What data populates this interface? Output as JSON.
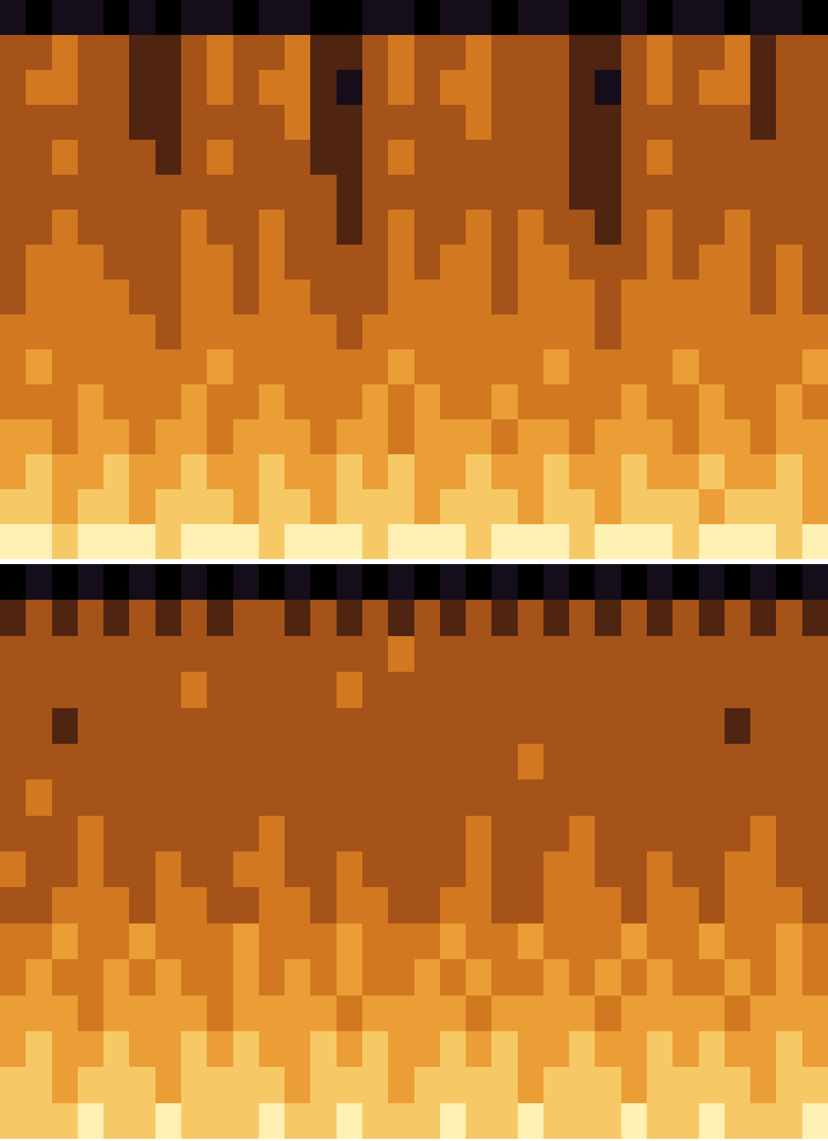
{
  "chart_data": [
    {
      "type": "heatmap",
      "tick_labels": false,
      "cells": [
        [
          3,
          2,
          3,
          3,
          2,
          3,
          2,
          3,
          3,
          2,
          3,
          3,
          2,
          2,
          3,
          3,
          2,
          3,
          3,
          2,
          3,
          3,
          2,
          2,
          3,
          2,
          3,
          3,
          2,
          3,
          3,
          2
        ],
        [
          5,
          5,
          6,
          5,
          5,
          4,
          4,
          5,
          6,
          5,
          5,
          6,
          4,
          4,
          5,
          6,
          5,
          5,
          6,
          5,
          5,
          5,
          4,
          4,
          5,
          6,
          5,
          5,
          6,
          4,
          5,
          5
        ],
        [
          5,
          6,
          6,
          5,
          5,
          4,
          4,
          5,
          6,
          5,
          6,
          6,
          4,
          3,
          5,
          6,
          5,
          6,
          6,
          5,
          5,
          5,
          4,
          3,
          5,
          6,
          5,
          6,
          6,
          4,
          5,
          5
        ],
        [
          5,
          5,
          5,
          5,
          5,
          4,
          4,
          5,
          5,
          5,
          5,
          6,
          4,
          4,
          5,
          5,
          5,
          5,
          6,
          5,
          5,
          5,
          4,
          4,
          5,
          5,
          5,
          5,
          5,
          4,
          5,
          5
        ],
        [
          5,
          5,
          6,
          5,
          5,
          5,
          4,
          5,
          6,
          5,
          5,
          5,
          4,
          4,
          5,
          6,
          5,
          5,
          5,
          5,
          5,
          5,
          4,
          4,
          5,
          6,
          5,
          5,
          5,
          5,
          5,
          5
        ],
        [
          5,
          5,
          5,
          5,
          5,
          5,
          5,
          5,
          5,
          5,
          5,
          5,
          5,
          4,
          5,
          5,
          5,
          5,
          5,
          5,
          5,
          5,
          4,
          4,
          5,
          5,
          5,
          5,
          5,
          5,
          5,
          5
        ],
        [
          5,
          5,
          6,
          5,
          5,
          5,
          5,
          6,
          5,
          5,
          6,
          5,
          5,
          4,
          5,
          6,
          5,
          5,
          6,
          5,
          6,
          5,
          5,
          4,
          5,
          6,
          5,
          5,
          6,
          5,
          5,
          5
        ],
        [
          5,
          6,
          6,
          6,
          5,
          5,
          5,
          6,
          6,
          5,
          6,
          5,
          5,
          5,
          5,
          6,
          5,
          6,
          6,
          5,
          6,
          6,
          5,
          5,
          5,
          6,
          5,
          6,
          6,
          5,
          6,
          5
        ],
        [
          5,
          6,
          6,
          6,
          6,
          5,
          5,
          6,
          6,
          5,
          6,
          6,
          5,
          5,
          5,
          6,
          6,
          6,
          6,
          5,
          6,
          6,
          6,
          5,
          6,
          6,
          6,
          6,
          6,
          5,
          6,
          5
        ],
        [
          6,
          6,
          6,
          6,
          6,
          6,
          5,
          6,
          6,
          6,
          6,
          6,
          6,
          5,
          6,
          6,
          6,
          6,
          6,
          6,
          6,
          6,
          6,
          5,
          6,
          6,
          6,
          6,
          6,
          6,
          6,
          6
        ],
        [
          6,
          7,
          6,
          6,
          6,
          6,
          6,
          6,
          7,
          6,
          6,
          6,
          6,
          6,
          6,
          7,
          6,
          6,
          6,
          6,
          6,
          7,
          6,
          6,
          6,
          6,
          7,
          6,
          6,
          6,
          6,
          7
        ],
        [
          6,
          6,
          6,
          7,
          6,
          6,
          6,
          7,
          6,
          6,
          7,
          6,
          6,
          6,
          7,
          6,
          7,
          6,
          6,
          7,
          6,
          6,
          6,
          6,
          7,
          6,
          6,
          7,
          6,
          6,
          7,
          6
        ],
        [
          7,
          7,
          6,
          7,
          7,
          6,
          7,
          7,
          6,
          7,
          7,
          7,
          6,
          7,
          7,
          6,
          7,
          7,
          7,
          6,
          7,
          7,
          6,
          7,
          7,
          7,
          6,
          7,
          7,
          6,
          7,
          7
        ],
        [
          7,
          8,
          7,
          7,
          8,
          7,
          7,
          8,
          7,
          7,
          8,
          7,
          7,
          8,
          7,
          8,
          7,
          7,
          8,
          7,
          7,
          8,
          7,
          7,
          8,
          7,
          7,
          8,
          7,
          7,
          8,
          7
        ],
        [
          8,
          8,
          7,
          8,
          8,
          7,
          8,
          8,
          8,
          7,
          8,
          8,
          7,
          8,
          8,
          8,
          7,
          8,
          8,
          8,
          7,
          8,
          8,
          7,
          8,
          8,
          8,
          7,
          8,
          8,
          8,
          7
        ],
        [
          9,
          9,
          8,
          9,
          9,
          9,
          8,
          9,
          9,
          9,
          8,
          9,
          9,
          9,
          8,
          9,
          9,
          9,
          8,
          9,
          9,
          9,
          8,
          9,
          9,
          9,
          8,
          9,
          9,
          9,
          8,
          9
        ]
      ]
    },
    {
      "type": "heatmap",
      "tick_labels": false,
      "cells": [
        [
          2,
          3,
          2,
          3,
          2,
          3,
          2,
          3,
          2,
          3,
          2,
          3,
          2,
          3,
          2,
          3,
          2,
          3,
          2,
          3,
          2,
          3,
          2,
          3,
          2,
          3,
          2,
          3,
          2,
          3,
          2,
          3
        ],
        [
          4,
          5,
          4,
          5,
          4,
          5,
          4,
          5,
          4,
          5,
          5,
          4,
          5,
          4,
          5,
          4,
          5,
          4,
          5,
          4,
          5,
          4,
          5,
          4,
          5,
          4,
          5,
          4,
          5,
          4,
          5,
          4
        ],
        [
          5,
          5,
          5,
          5,
          5,
          5,
          5,
          5,
          5,
          5,
          5,
          5,
          5,
          5,
          5,
          6,
          5,
          5,
          5,
          5,
          5,
          5,
          5,
          5,
          5,
          5,
          5,
          5,
          5,
          5,
          5,
          5
        ],
        [
          5,
          5,
          5,
          5,
          5,
          5,
          5,
          6,
          5,
          5,
          5,
          5,
          5,
          6,
          5,
          5,
          5,
          5,
          5,
          5,
          5,
          5,
          5,
          5,
          5,
          5,
          5,
          5,
          5,
          5,
          5,
          5
        ],
        [
          5,
          5,
          4,
          5,
          5,
          5,
          5,
          5,
          5,
          5,
          5,
          5,
          5,
          5,
          5,
          5,
          5,
          5,
          5,
          5,
          5,
          5,
          5,
          5,
          5,
          5,
          5,
          5,
          4,
          5,
          5,
          5
        ],
        [
          5,
          5,
          5,
          5,
          5,
          5,
          5,
          5,
          5,
          5,
          5,
          5,
          5,
          5,
          5,
          5,
          5,
          5,
          5,
          5,
          6,
          5,
          5,
          5,
          5,
          5,
          5,
          5,
          5,
          5,
          5,
          5
        ],
        [
          5,
          6,
          5,
          5,
          5,
          5,
          5,
          5,
          5,
          5,
          5,
          5,
          5,
          5,
          5,
          5,
          5,
          5,
          5,
          5,
          5,
          5,
          5,
          5,
          5,
          5,
          5,
          5,
          5,
          5,
          5,
          5
        ],
        [
          5,
          5,
          5,
          6,
          5,
          5,
          5,
          5,
          5,
          5,
          6,
          5,
          5,
          5,
          5,
          5,
          5,
          5,
          6,
          5,
          5,
          5,
          6,
          5,
          5,
          5,
          5,
          5,
          5,
          6,
          5,
          5
        ],
        [
          6,
          5,
          5,
          6,
          5,
          5,
          6,
          5,
          5,
          6,
          6,
          5,
          5,
          6,
          5,
          5,
          5,
          5,
          6,
          5,
          5,
          6,
          6,
          5,
          5,
          6,
          5,
          5,
          6,
          6,
          5,
          5
        ],
        [
          5,
          5,
          6,
          6,
          6,
          5,
          6,
          6,
          5,
          5,
          6,
          6,
          5,
          6,
          6,
          5,
          5,
          6,
          6,
          5,
          5,
          6,
          6,
          6,
          5,
          6,
          6,
          5,
          6,
          6,
          6,
          5
        ],
        [
          6,
          6,
          7,
          6,
          6,
          7,
          6,
          6,
          6,
          7,
          6,
          6,
          6,
          7,
          6,
          6,
          6,
          7,
          6,
          6,
          7,
          6,
          6,
          6,
          7,
          6,
          6,
          7,
          6,
          6,
          7,
          6
        ],
        [
          6,
          7,
          6,
          6,
          7,
          6,
          7,
          6,
          6,
          7,
          6,
          7,
          6,
          7,
          6,
          6,
          7,
          6,
          7,
          6,
          6,
          7,
          6,
          7,
          6,
          7,
          6,
          6,
          7,
          6,
          7,
          6
        ],
        [
          7,
          7,
          7,
          6,
          7,
          7,
          7,
          7,
          6,
          7,
          7,
          7,
          7,
          6,
          7,
          7,
          7,
          7,
          6,
          7,
          7,
          7,
          7,
          6,
          7,
          7,
          7,
          7,
          6,
          7,
          7,
          7
        ],
        [
          7,
          8,
          7,
          7,
          8,
          7,
          7,
          8,
          7,
          8,
          7,
          7,
          8,
          7,
          8,
          7,
          7,
          8,
          7,
          8,
          7,
          7,
          8,
          7,
          7,
          8,
          7,
          8,
          7,
          7,
          8,
          7
        ],
        [
          8,
          8,
          7,
          8,
          8,
          8,
          7,
          8,
          8,
          8,
          8,
          7,
          8,
          8,
          8,
          7,
          8,
          8,
          8,
          8,
          7,
          8,
          8,
          8,
          7,
          8,
          8,
          8,
          8,
          7,
          8,
          8
        ],
        [
          8,
          8,
          8,
          9,
          8,
          8,
          9,
          8,
          8,
          8,
          9,
          8,
          8,
          9,
          8,
          8,
          8,
          9,
          8,
          8,
          9,
          8,
          8,
          8,
          9,
          8,
          8,
          9,
          8,
          8,
          8,
          9
        ]
      ]
    }
  ]
}
